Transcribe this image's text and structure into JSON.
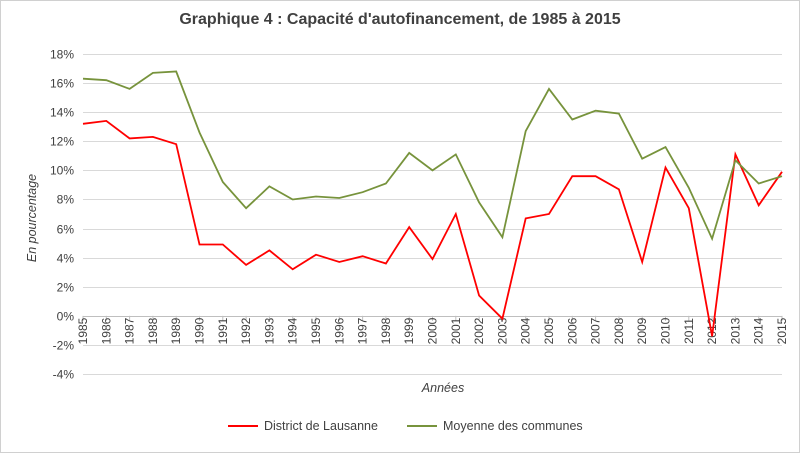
{
  "chart_data": {
    "type": "line",
    "title": "Graphique 4 : Capacité d'autofinancement, de 1985 à 2015",
    "xlabel": "Années",
    "ylabel": "En pourcentage",
    "ylim": [
      -4,
      18
    ],
    "yticks": [
      -4,
      -2,
      0,
      2,
      4,
      6,
      8,
      10,
      12,
      14,
      16,
      18
    ],
    "ytick_suffix": "%",
    "grid": true,
    "legend_position": "bottom",
    "categories": [
      "1985",
      "1986",
      "1987",
      "1988",
      "1989",
      "1990",
      "1991",
      "1992",
      "1993",
      "1994",
      "1995",
      "1996",
      "1997",
      "1998",
      "1999",
      "2000",
      "2001",
      "2002",
      "2003",
      "2004",
      "2005",
      "2006",
      "2007",
      "2008",
      "2009",
      "2010",
      "2011",
      "2012",
      "2013",
      "2014",
      "2015"
    ],
    "series": [
      {
        "name": "District de Lausanne",
        "color": "#ff0000",
        "values": [
          13.2,
          13.4,
          12.2,
          12.3,
          11.8,
          4.9,
          4.9,
          3.5,
          4.5,
          3.2,
          4.2,
          3.7,
          4.1,
          3.6,
          6.1,
          3.9,
          7.0,
          1.4,
          -0.2,
          6.7,
          7.0,
          9.6,
          9.6,
          8.7,
          3.7,
          10.2,
          7.4,
          -1.4,
          11.1,
          7.6,
          9.9
        ]
      },
      {
        "name": "Moyenne des communes",
        "color": "#77933c",
        "values": [
          16.3,
          16.2,
          15.6,
          16.7,
          16.8,
          12.6,
          9.2,
          7.4,
          8.9,
          8.0,
          8.2,
          8.1,
          8.5,
          9.1,
          11.2,
          10.0,
          11.1,
          7.8,
          5.4,
          12.7,
          15.6,
          13.5,
          14.1,
          13.9,
          10.8,
          11.6,
          8.8,
          5.3,
          10.7,
          9.1,
          9.6
        ]
      }
    ]
  }
}
